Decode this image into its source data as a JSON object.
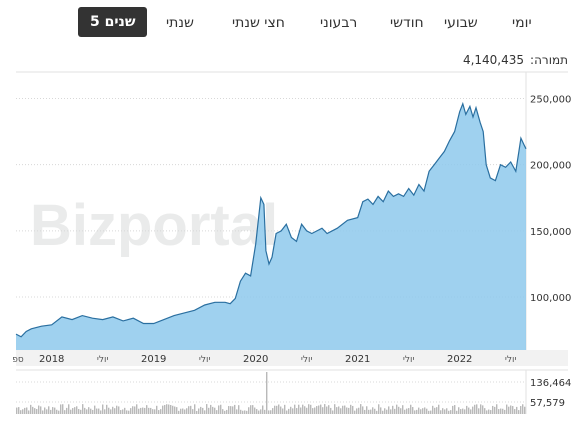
{
  "tabs": [
    {
      "label": "יומי",
      "active": false
    },
    {
      "label": "שבועי",
      "active": false
    },
    {
      "label": "חודשי",
      "active": false
    },
    {
      "label": "רבעוני",
      "active": false
    },
    {
      "label": "חצי שנתי",
      "active": false
    },
    {
      "label": "שנתי",
      "active": false
    },
    {
      "label": "5 שנים",
      "active": true
    }
  ],
  "turnover": {
    "label": "תמורה:",
    "value": "4,140,435"
  },
  "watermark": "Bizportal",
  "colors": {
    "area_fill": "#8ec9ec",
    "line": "#2a6fa0",
    "grid": "#d8d8d8",
    "volume": "#b9b9b9"
  },
  "chart_data": {
    "type": "area",
    "y_ticks": [
      "250,000",
      "200,000",
      "150,000",
      "100,000"
    ],
    "ylim": [
      60000,
      270000
    ],
    "x_labels": [
      "ספ",
      "2018",
      "יולי",
      "2019",
      "יולי",
      "2020",
      "יולי",
      "2021",
      "יולי",
      "2022",
      "יולי"
    ],
    "x_positions": [
      2017.67,
      2018.0,
      2018.5,
      2019.0,
      2019.5,
      2020.0,
      2020.5,
      2021.0,
      2021.5,
      2022.0,
      2022.5
    ],
    "xlim": [
      2017.65,
      2022.65
    ],
    "series": [
      {
        "x": [
          2017.65,
          2017.7,
          2017.75,
          2017.8,
          2017.9,
          2018.0,
          2018.1,
          2018.2,
          2018.3,
          2018.4,
          2018.5,
          2018.6,
          2018.7,
          2018.8,
          2018.9,
          2019.0,
          2019.1,
          2019.2,
          2019.3,
          2019.4,
          2019.5,
          2019.6,
          2019.7,
          2019.75,
          2019.8,
          2019.85,
          2019.9,
          2019.95,
          2020.0,
          2020.05,
          2020.08,
          2020.1,
          2020.13,
          2020.16,
          2020.2,
          2020.25,
          2020.3,
          2020.35,
          2020.4,
          2020.45,
          2020.5,
          2020.55,
          2020.6,
          2020.65,
          2020.7,
          2020.8,
          2020.9,
          2021.0,
          2021.05,
          2021.1,
          2021.15,
          2021.2,
          2021.25,
          2021.3,
          2021.35,
          2021.4,
          2021.45,
          2021.5,
          2021.55,
          2021.6,
          2021.65,
          2021.7,
          2021.75,
          2021.8,
          2021.85,
          2021.9,
          2021.95,
          2022.0,
          2022.03,
          2022.06,
          2022.1,
          2022.13,
          2022.16,
          2022.2,
          2022.23,
          2022.26,
          2022.3,
          2022.35,
          2022.4,
          2022.45,
          2022.5,
          2022.55,
          2022.58,
          2022.6,
          2022.63,
          2022.65
        ],
        "values": [
          72000,
          70000,
          74000,
          76000,
          78000,
          79000,
          85000,
          83000,
          86000,
          84000,
          83000,
          85000,
          82000,
          84000,
          80000,
          80000,
          83000,
          86000,
          88000,
          90000,
          94000,
          96000,
          96000,
          95000,
          99000,
          112000,
          118000,
          116000,
          140000,
          175000,
          170000,
          135000,
          125000,
          130000,
          148000,
          150000,
          155000,
          145000,
          142000,
          155000,
          150000,
          148000,
          150000,
          152000,
          148000,
          152000,
          158000,
          160000,
          172000,
          174000,
          170000,
          176000,
          172000,
          180000,
          176000,
          178000,
          176000,
          182000,
          177000,
          185000,
          180000,
          195000,
          200000,
          205000,
          210000,
          218000,
          225000,
          240000,
          246000,
          238000,
          244000,
          236000,
          243000,
          232000,
          225000,
          200000,
          190000,
          188000,
          200000,
          198000,
          202000,
          195000,
          210000,
          220000,
          215000,
          212000
        ]
      }
    ],
    "volume": {
      "y_ticks": [
        "136,464",
        "57,579"
      ],
      "ylim": [
        0,
        160000
      ]
    }
  }
}
